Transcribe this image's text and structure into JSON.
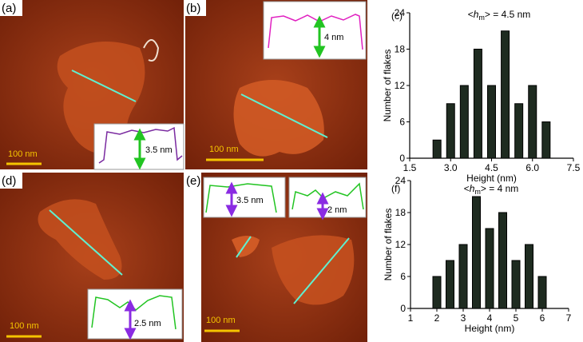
{
  "panels": [
    {
      "label": "(a)",
      "scale_bar": "100 nm",
      "heights": [
        "3.5 nm"
      ]
    },
    {
      "label": "(b)",
      "scale_bar": "100 nm",
      "heights": [
        "4 nm"
      ]
    },
    {
      "label": "(d)",
      "scale_bar": "100 nm",
      "heights": [
        "2.5 nm"
      ]
    },
    {
      "label": "(e)",
      "scale_bar": "100 nm",
      "heights": [
        "3.5 nm",
        "2 nm"
      ]
    }
  ],
  "chart_data": [
    {
      "type": "bar",
      "panel_label": "(c)",
      "title_parts": [
        "<",
        "h",
        "m",
        "> = 4.5 nm"
      ],
      "x_label": "Height (nm)",
      "y_label": "Number of flakes",
      "x": [
        2.5,
        3.0,
        3.5,
        4.0,
        4.5,
        5.0,
        5.5,
        6.0,
        6.5
      ],
      "values": [
        3,
        9,
        12,
        18,
        12,
        21,
        9,
        12,
        6
      ],
      "color": "#1e2b20",
      "xlim": [
        1.5,
        7.5
      ],
      "xticks": [
        1.5,
        {
          "value": 3,
          "label": "3.0"
        },
        4.5,
        {
          "value": 6,
          "label": "6.0"
        },
        7.5
      ],
      "ylim": [
        0,
        24
      ],
      "yticks": [
        0,
        6,
        12,
        18,
        24
      ]
    },
    {
      "type": "bar",
      "panel_label": "(f)",
      "title_parts": [
        "<",
        "h",
        "m",
        "> = 4 nm"
      ],
      "x_label": "Height (nm)",
      "y_label": "Number of flakes",
      "x": [
        2.0,
        2.5,
        3.0,
        3.5,
        4.0,
        4.5,
        5.0,
        5.5,
        6.0
      ],
      "values": [
        6,
        9,
        12,
        21,
        15,
        18,
        9,
        12,
        6
      ],
      "color": "#1e2b20",
      "xlim": [
        1,
        7
      ],
      "xticks": [
        1,
        2,
        3,
        4,
        5,
        6,
        7
      ],
      "ylim": [
        0,
        24
      ],
      "yticks": [
        0,
        6,
        12,
        18,
        24
      ]
    }
  ]
}
